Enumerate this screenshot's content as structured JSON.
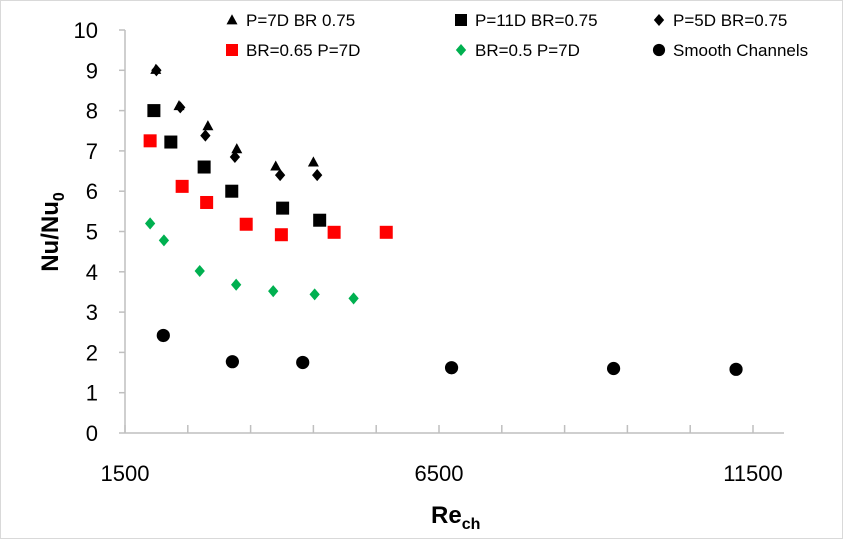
{
  "chart_data": {
    "type": "scatter",
    "title": "",
    "xlabel": "Re",
    "xlabel_sub": "ch",
    "ylabel": "Nu/Nu",
    "ylabel_sub": "0",
    "xlim": [
      1500,
      13000
    ],
    "ylim": [
      0,
      10
    ],
    "x_ticks": [
      1500,
      6500,
      11500
    ],
    "x_ticks_printed": [
      "1500",
      "6500",
      "11500"
    ],
    "y_ticks": [
      0,
      1,
      2,
      3,
      4,
      5,
      6,
      7,
      8,
      9,
      10
    ],
    "y_ticks_printed": [
      "0",
      "1",
      "2",
      "3",
      "4",
      "5",
      "6",
      "7",
      "8",
      "9",
      "10"
    ],
    "grid": false,
    "legend_position": "top",
    "series": [
      {
        "name": "P=7D BR 0.75",
        "marker": "triangle",
        "color": "#000000",
        "x": [
          1990,
          2360,
          2820,
          3280,
          3900,
          4500
        ],
        "y": [
          9.02,
          8.12,
          7.62,
          7.05,
          6.62,
          6.72
        ]
      },
      {
        "name": "P=11D BR=0.75",
        "marker": "square",
        "color": "#000000",
        "x": [
          1960,
          2230,
          2760,
          3200,
          4010,
          4600
        ],
        "y": [
          8.0,
          7.22,
          6.6,
          6.0,
          5.58,
          5.28
        ]
      },
      {
        "name": "P=5D BR=0.75",
        "marker": "diamond",
        "color": "#000000",
        "x": [
          2000,
          2380,
          2780,
          3250,
          3970,
          4560
        ],
        "y": [
          9.0,
          8.08,
          7.38,
          6.85,
          6.4,
          6.4
        ]
      },
      {
        "name": "BR=0.65 P=7D",
        "marker": "square",
        "color": "#ff0000",
        "x": [
          1900,
          2410,
          2800,
          3430,
          3990,
          4830,
          5660
        ],
        "y": [
          7.25,
          6.12,
          5.72,
          5.18,
          4.92,
          4.98,
          4.98
        ]
      },
      {
        "name": "BR=0.5 P=7D",
        "marker": "diamond",
        "color": "#00b050",
        "x": [
          1900,
          2120,
          2690,
          3270,
          3860,
          4520,
          5140
        ],
        "y": [
          5.2,
          4.78,
          4.02,
          3.68,
          3.52,
          3.44,
          3.34
        ]
      },
      {
        "name": "Smooth Channels",
        "marker": "circle",
        "color": "#000000",
        "x": [
          2110,
          3210,
          4330,
          6700,
          9280,
          11230
        ],
        "y": [
          2.42,
          1.77,
          1.75,
          1.62,
          1.6,
          1.58
        ]
      }
    ]
  }
}
